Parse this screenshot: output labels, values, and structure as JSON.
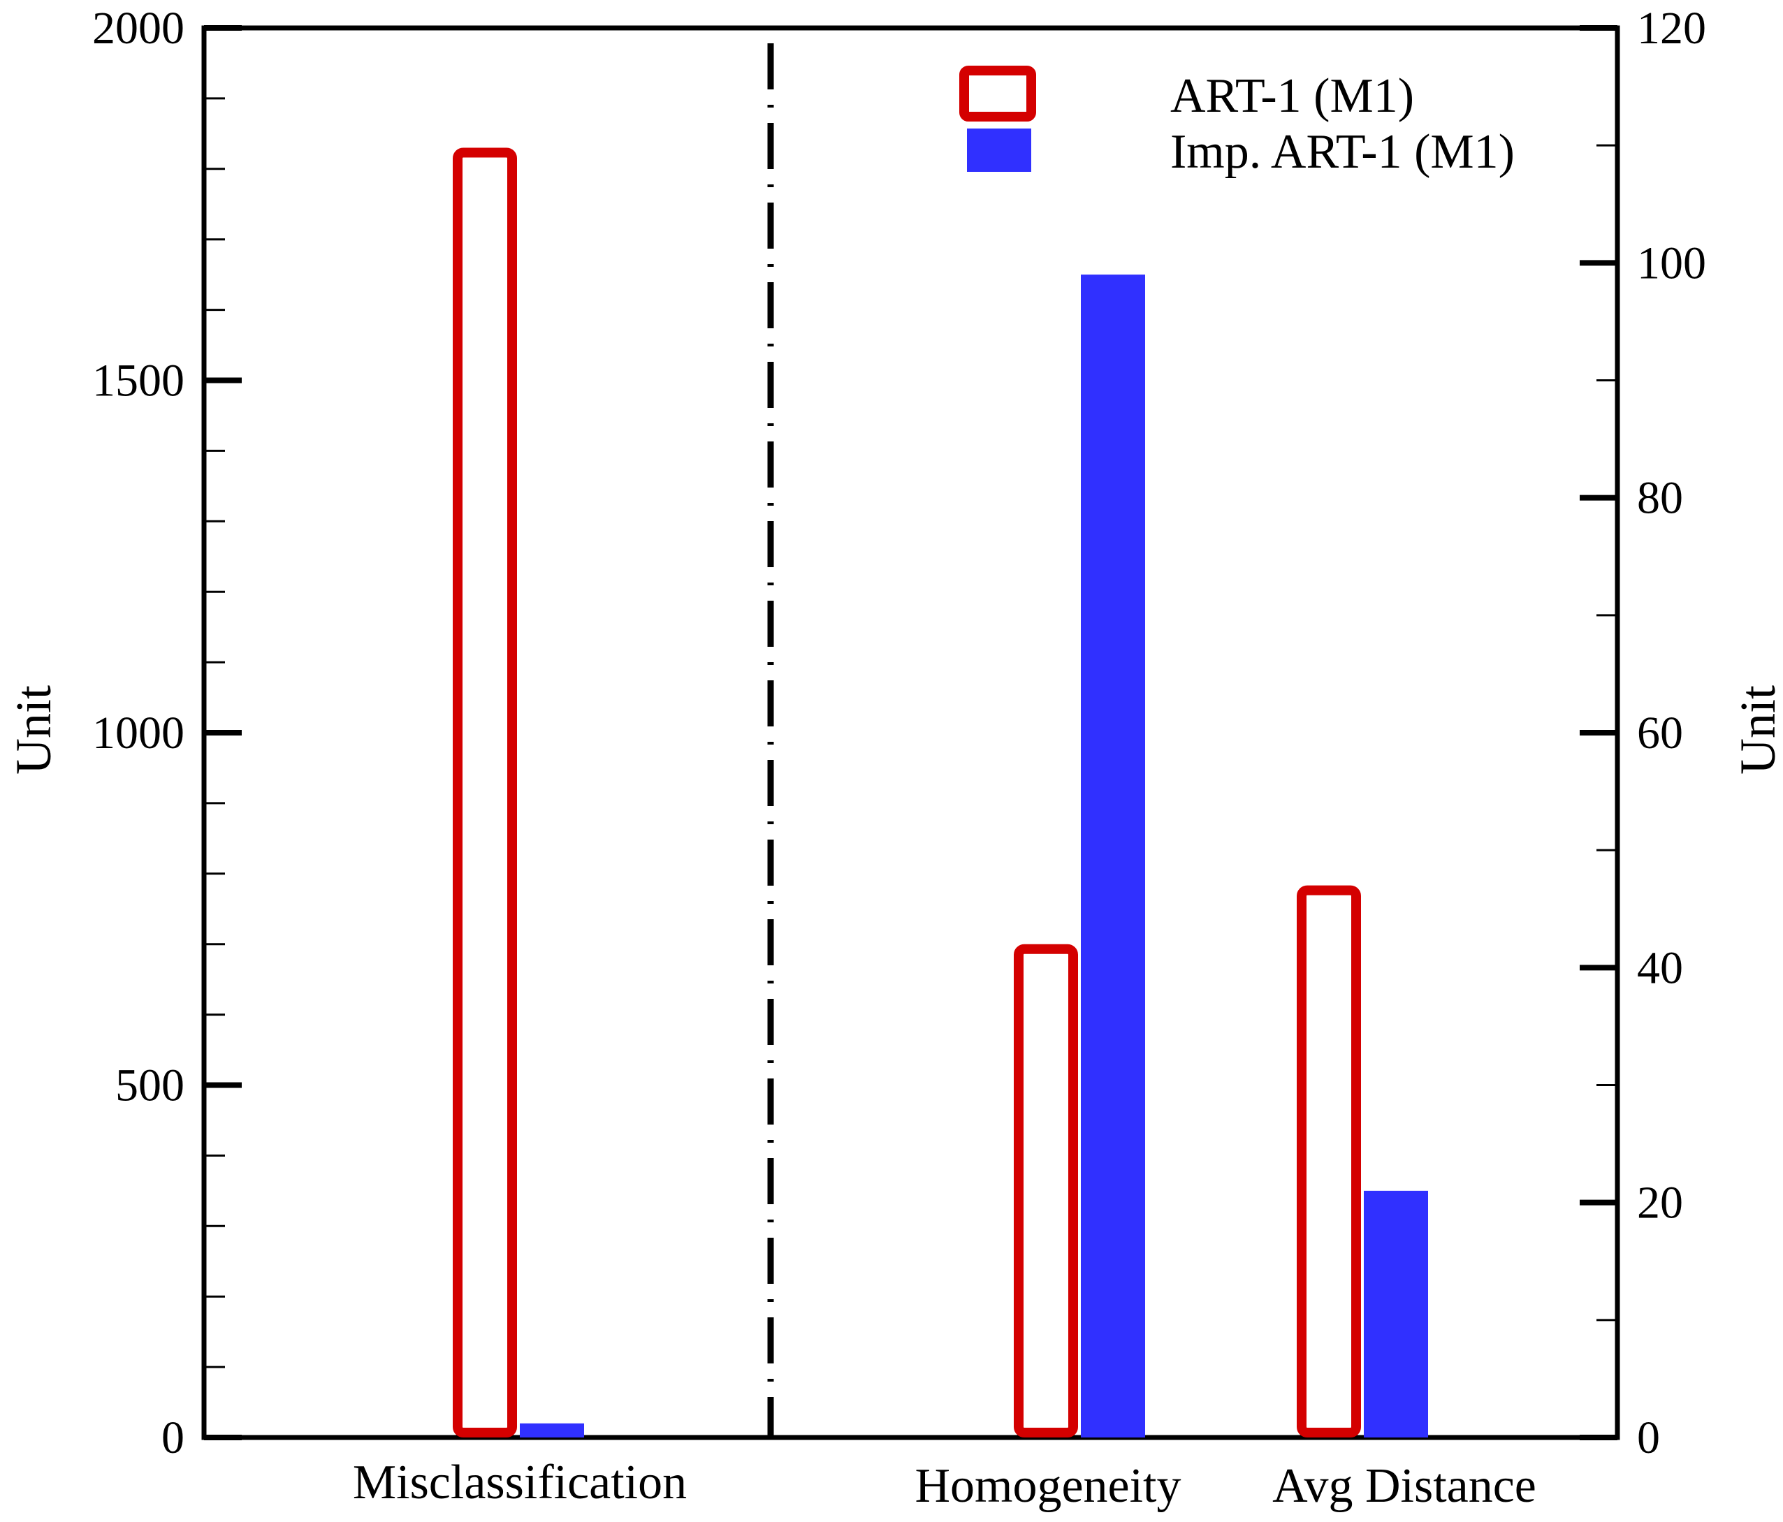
{
  "chart_data": {
    "type": "bar",
    "title": "",
    "categories": [
      "Misclassification",
      "Homogeneity",
      "Avg Distance"
    ],
    "series": [
      {
        "name": "ART-1 (M1)",
        "style": "outline",
        "color": "#d40000",
        "values": [
          1830,
          42,
          47
        ],
        "axis": [
          "left",
          "right",
          "right"
        ]
      },
      {
        "name": "Imp. ART-1 (M1)",
        "style": "filled",
        "color": "#3030ff",
        "values": [
          20,
          99,
          21
        ],
        "axis": [
          "left",
          "right",
          "right"
        ]
      }
    ],
    "left_axis": {
      "label": "Unit",
      "ylim": [
        0,
        2000
      ],
      "major_ticks": [
        0,
        500,
        1000,
        1500,
        2000
      ],
      "tick_labels": [
        "0",
        "500",
        "1000",
        "1500",
        "2000"
      ],
      "minor_step": 100
    },
    "right_axis": {
      "label": "Unit",
      "ylim": [
        0,
        120
      ],
      "major_ticks": [
        0,
        20,
        40,
        60,
        80,
        100,
        120
      ],
      "tick_labels": [
        "0",
        "20",
        "40",
        "60",
        "80",
        "100",
        "120"
      ],
      "minor_step": 10
    },
    "divider": "dash-dot line between Misclassification and Homogeneity",
    "legend_position": "top-right",
    "grid": false
  }
}
